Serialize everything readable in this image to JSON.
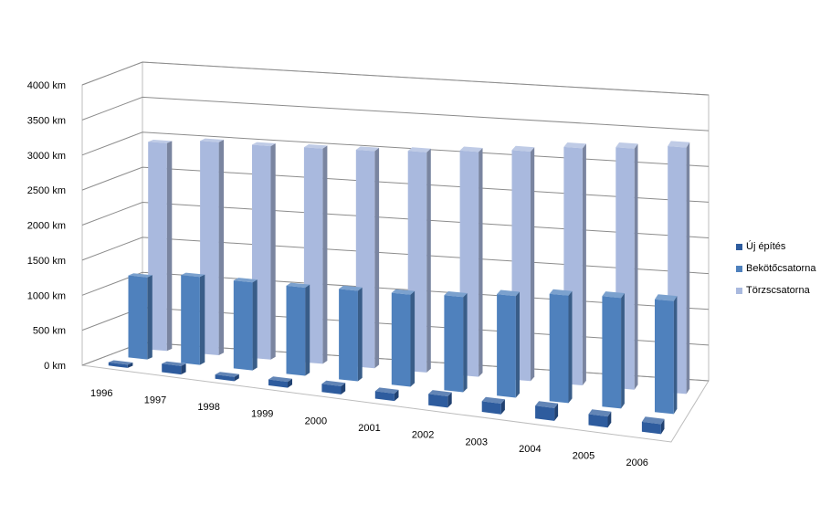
{
  "chart_data": {
    "type": "bar",
    "title": "",
    "xlabel": "",
    "ylabel": "",
    "ylim": [
      0,
      4000
    ],
    "yticks": [
      "0 km",
      "500 km",
      "1000 km",
      "1500 km",
      "2000 km",
      "2500 km",
      "3000 km",
      "3500 km",
      "4000 km"
    ],
    "categories": [
      "1996",
      "1997",
      "1998",
      "1999",
      "2000",
      "2001",
      "2002",
      "2003",
      "2004",
      "2005",
      "2006"
    ],
    "series": [
      {
        "name": "Új építés",
        "color": "#2E5C9E",
        "values": [
          45,
          120,
          60,
          85,
          115,
          105,
          160,
          150,
          180,
          155,
          140
        ]
      },
      {
        "name": "Bekötőcsatorna",
        "color": "#4F81BD",
        "values": [
          1170,
          1250,
          1250,
          1250,
          1280,
          1300,
          1340,
          1430,
          1510,
          1550,
          1580
        ]
      },
      {
        "name": "Törzscsatorna",
        "color": "#A9B9DE",
        "values": [
          2960,
          3030,
          3030,
          3050,
          3070,
          3110,
          3170,
          3230,
          3330,
          3380,
          3450
        ]
      }
    ],
    "legend_position": "right",
    "grid": true
  }
}
